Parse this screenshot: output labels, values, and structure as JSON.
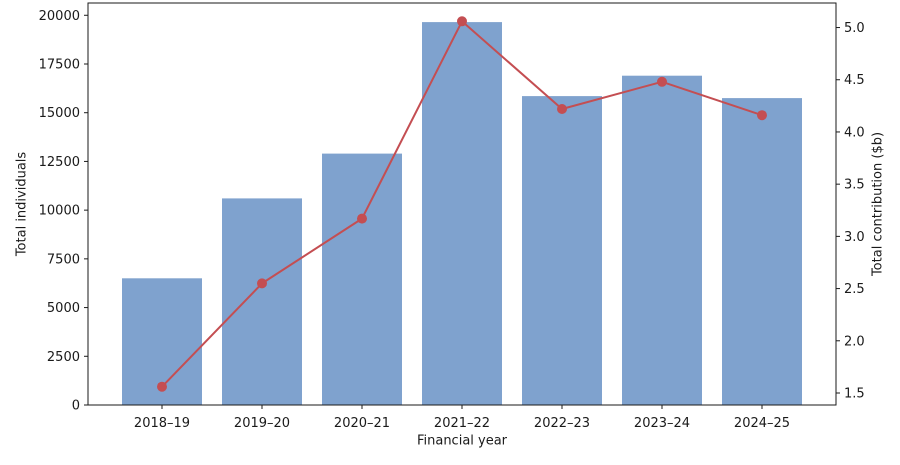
{
  "chart_data": {
    "type": "bar+line",
    "title": "",
    "categories": [
      "2018–19",
      "2019–20",
      "2020–21",
      "2021–22",
      "2022–23",
      "2023–24",
      "2024–25"
    ],
    "series": [
      {
        "name": "Total individuals",
        "chart": "bar",
        "axis": "left",
        "color": "#7fa2ce",
        "values": [
          6500,
          10600,
          12900,
          19650,
          15850,
          16900,
          15750
        ]
      },
      {
        "name": "Total contribution ($b)",
        "chart": "line",
        "axis": "right",
        "color": "#c44e52",
        "values": [
          1.56,
          2.55,
          3.17,
          5.06,
          4.22,
          4.48,
          4.16
        ]
      }
    ],
    "xlabel": "Financial year",
    "left_axis": {
      "label": "Total individuals",
      "ticks": [
        0,
        2500,
        5000,
        7500,
        10000,
        12500,
        15000,
        17500,
        20000
      ],
      "lim": [
        0,
        20630
      ]
    },
    "right_axis": {
      "label": "Total contribution ($b)",
      "ticks": [
        1.5,
        2.0,
        2.5,
        3.0,
        3.5,
        4.0,
        4.5,
        5.0
      ],
      "lim": [
        1.385,
        5.235
      ]
    },
    "grid": false,
    "legend": "none",
    "background": "#ffffff",
    "spine_color": "#1a1a1a",
    "tick_color": "#1a1a1a"
  }
}
